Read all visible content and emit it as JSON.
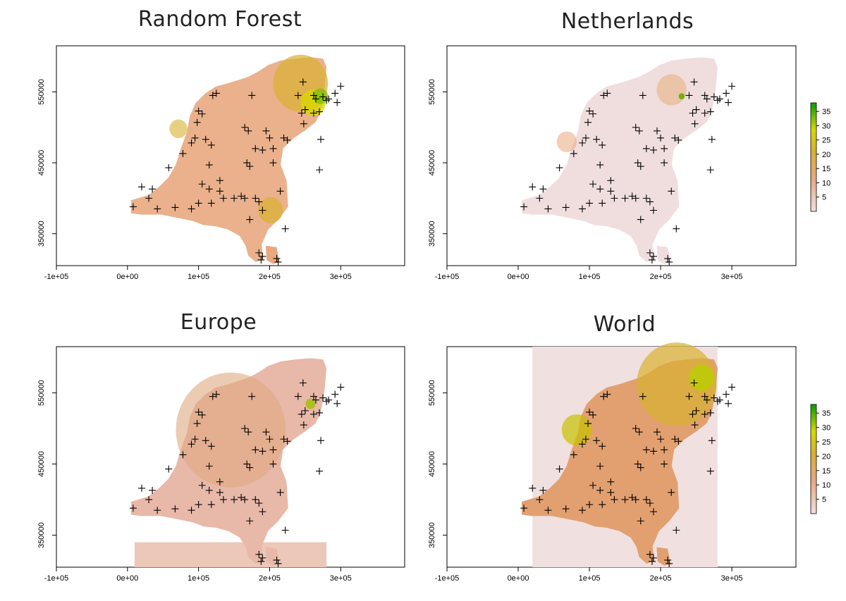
{
  "panels": [
    {
      "title": "Random Forest",
      "tone": "rf"
    },
    {
      "title": "Netherlands",
      "tone": "nl"
    },
    {
      "title": "Europe",
      "tone": "eu"
    },
    {
      "title": "World",
      "tone": "wo"
    }
  ],
  "x_ticks": [
    "-1e+05",
    "0e+00",
    "1e+05",
    "2e+05",
    "3e+05"
  ],
  "y_ticks": [
    "350000",
    "450000",
    "550000"
  ],
  "legend_ticks": [
    "5",
    "10",
    "15",
    "20",
    "25",
    "30",
    "35"
  ],
  "colors": {
    "low": "#f0dede",
    "mid": "#e8a880",
    "gold": "#d8b030",
    "yellow": "#d8d800",
    "high": "#00a000",
    "frame": "#000000"
  },
  "chart_data": {
    "type": "map",
    "x_range": [
      -100000,
      390000
    ],
    "y_range": [
      305000,
      615000
    ],
    "legend_range": [
      0,
      38
    ],
    "points": [
      [
        247000,
        564000
      ],
      [
        240000,
        545000
      ],
      [
        262000,
        545000
      ],
      [
        265000,
        540000
      ],
      [
        275000,
        543000
      ],
      [
        283000,
        540000
      ],
      [
        292000,
        548000
      ],
      [
        300000,
        558000
      ],
      [
        295000,
        535000
      ],
      [
        280000,
        538000
      ],
      [
        250000,
        525000
      ],
      [
        245000,
        520000
      ],
      [
        262000,
        520000
      ],
      [
        270000,
        522000
      ],
      [
        248000,
        505000
      ],
      [
        220000,
        485000
      ],
      [
        225000,
        482000
      ],
      [
        272000,
        483000
      ],
      [
        200000,
        485000
      ],
      [
        190000,
        468000
      ],
      [
        180000,
        470000
      ],
      [
        205000,
        470000
      ],
      [
        170000,
        495000
      ],
      [
        165000,
        500000
      ],
      [
        175000,
        545000
      ],
      [
        195000,
        495000
      ],
      [
        205000,
        450000
      ],
      [
        168000,
        450000
      ],
      [
        172000,
        445000
      ],
      [
        118000,
        475000
      ],
      [
        110000,
        483000
      ],
      [
        125000,
        548000
      ],
      [
        100000,
        523000
      ],
      [
        105000,
        519000
      ],
      [
        98000,
        507000
      ],
      [
        95000,
        485000
      ],
      [
        90000,
        478000
      ],
      [
        78000,
        463000
      ],
      [
        58000,
        443000
      ],
      [
        115000,
        447000
      ],
      [
        270000,
        440000
      ],
      [
        130000,
        425000
      ],
      [
        105000,
        420000
      ],
      [
        115000,
        413000
      ],
      [
        130000,
        410000
      ],
      [
        135000,
        400000
      ],
      [
        150000,
        400000
      ],
      [
        160000,
        403000
      ],
      [
        118000,
        393000
      ],
      [
        100000,
        393000
      ],
      [
        90000,
        385000
      ],
      [
        67000,
        387000
      ],
      [
        42000,
        385000
      ],
      [
        30000,
        400000
      ],
      [
        35000,
        413000
      ],
      [
        20000,
        416000
      ],
      [
        8000,
        388000
      ],
      [
        172000,
        370000
      ],
      [
        190000,
        383000
      ],
      [
        215000,
        410000
      ],
      [
        222000,
        357000
      ],
      [
        185000,
        323000
      ],
      [
        190000,
        318000
      ],
      [
        188000,
        313000
      ],
      [
        210000,
        315000
      ],
      [
        212000,
        310000
      ],
      [
        180000,
        400000
      ],
      [
        165000,
        400000
      ],
      [
        185000,
        395000
      ],
      [
        120000,
        545000
      ]
    ]
  }
}
